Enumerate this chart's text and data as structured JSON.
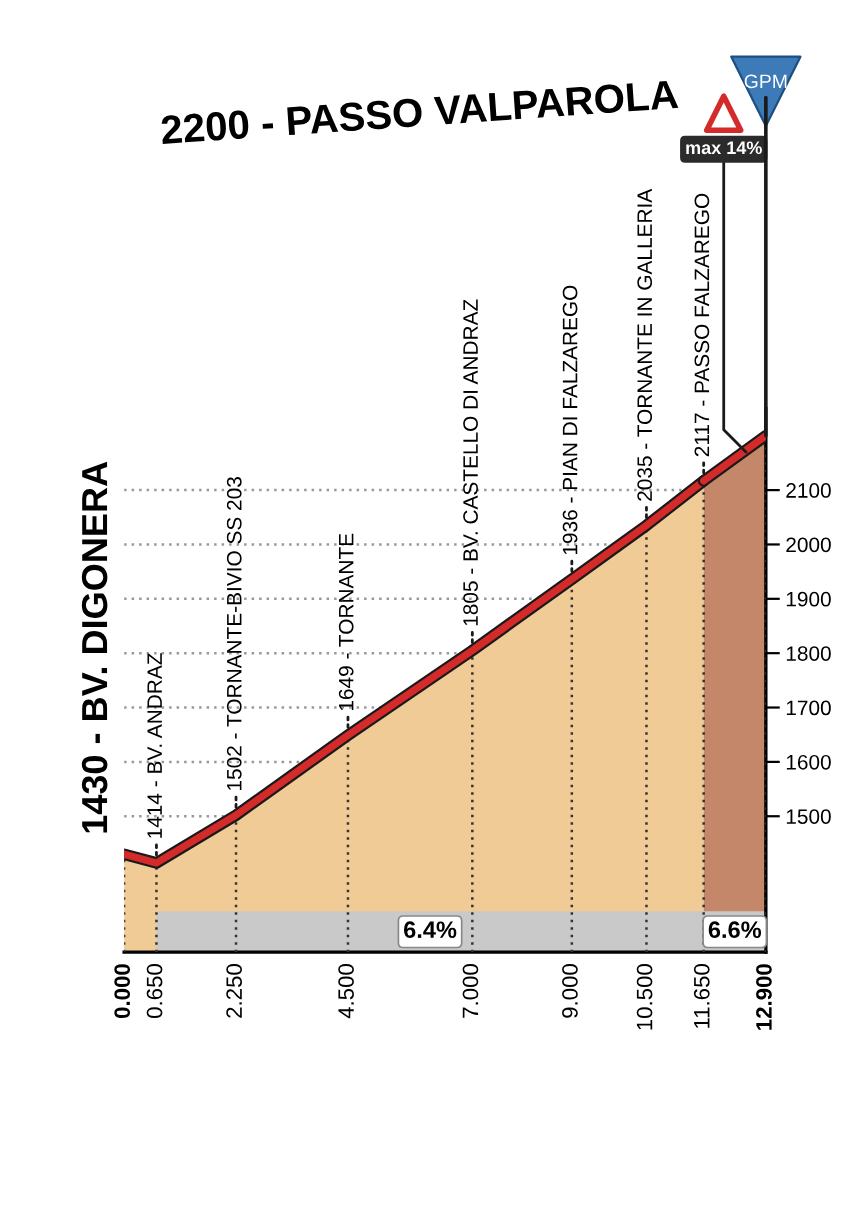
{
  "chart_data": {
    "type": "area",
    "title": "2200 - PASSO VALPAROLA",
    "series": [
      {
        "color": "#f0cb95",
        "x": [
          0,
          0.65,
          2.25,
          4.5,
          7,
          9,
          10.5,
          11.65
        ],
        "values": [
          1430,
          1414,
          1502,
          1649,
          1805,
          1936,
          2035,
          2117
        ]
      },
      {
        "color": "#c4876a",
        "x": [
          11.65,
          12.9
        ],
        "values": [
          2117,
          2200
        ]
      }
    ],
    "xlim": [
      0,
      12.9
    ],
    "xticks": [
      {
        "value": 0,
        "label": "0.000"
      },
      {
        "value": 0.65,
        "label": "0.650"
      },
      {
        "value": 2.25,
        "label": "2.250"
      },
      {
        "value": 4.5,
        "label": "4.500"
      },
      {
        "value": 7,
        "label": "7.000"
      },
      {
        "value": 9,
        "label": "9.000"
      },
      {
        "value": 10.5,
        "label": "10.500"
      },
      {
        "value": 11.65,
        "label": "11.650"
      },
      {
        "value": 12.9,
        "label": "12.900"
      }
    ],
    "ylim": [
      1250,
      2250
    ],
    "yticks": [
      1500,
      1600,
      1700,
      1800,
      1900,
      2000,
      2100
    ],
    "grid": true,
    "bands": [
      {
        "axis": "x",
        "from": 0.65,
        "to": 11.65,
        "label": "6.4%",
        "color": "#c9c9c9"
      },
      {
        "axis": "x",
        "from": 11.65,
        "to": 12.9,
        "label": "6.6%",
        "color": "#c9c9c9"
      }
    ],
    "annotations": [
      {
        "text": "1430 - BV. DIGONERA",
        "x": 0,
        "y": 1430
      },
      {
        "text": "1414 - BV. ANDRAZ",
        "x": 0.65,
        "y": 1414
      },
      {
        "text": "1502 - TORNANTE-BIVIO SS 203",
        "x": 2.25,
        "y": 1502
      },
      {
        "text": "1649 - TORNANTE",
        "x": 4.5,
        "y": 1649
      },
      {
        "text": "1805 - BV. CASTELLO DI ANDRAZ",
        "x": 7,
        "y": 1805
      },
      {
        "text": "1936 - PIAN DI FALZAREGO",
        "x": 9,
        "y": 1936
      },
      {
        "text": "2035 - TORNANTE IN GALLERIA",
        "x": 10.5,
        "y": 2035
      },
      {
        "text": "2117 - PASSO FALZAREGO",
        "x": 11.65,
        "y": 2117
      },
      {
        "text": "max 14%",
        "x": 12.5,
        "y": 2170
      },
      {
        "text": "GPM",
        "x": 12.9,
        "y": 2200
      }
    ]
  }
}
